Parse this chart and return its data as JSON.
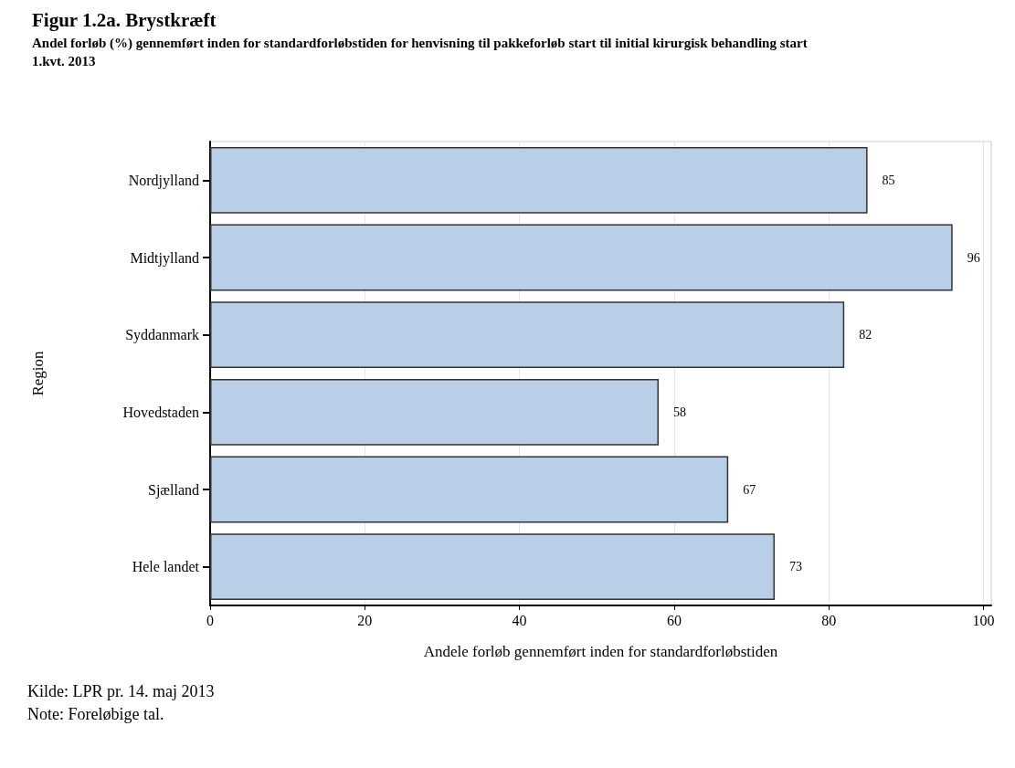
{
  "chart_data": {
    "type": "bar",
    "orientation": "horizontal",
    "title": "Figur 1.2a. Brystkræft",
    "subtitle": "Andel forløb (%) gennemført inden for standardforløbstiden for henvisning til pakkeforløb start til initial kirurgisk behandling start\n1.kvt. 2013",
    "ylabel": "Region",
    "xlabel": "Andele forløb gennemført inden for standardforløbstiden",
    "categories": [
      "Nordjylland",
      "Midtjylland",
      "Syddanmark",
      "Hovedstaden",
      "Sjælland",
      "Hele landet"
    ],
    "values": [
      85,
      96,
      82,
      58,
      67,
      73
    ],
    "color": "#b9cfe8",
    "data_labels": true,
    "xlim": [
      0,
      101
    ],
    "xticks": [
      0,
      20,
      40,
      60,
      80,
      100
    ],
    "grid": "x",
    "annotations": [
      "Kilde: LPR pr. 14. maj 2013",
      "Note: Foreløbige tal."
    ]
  }
}
